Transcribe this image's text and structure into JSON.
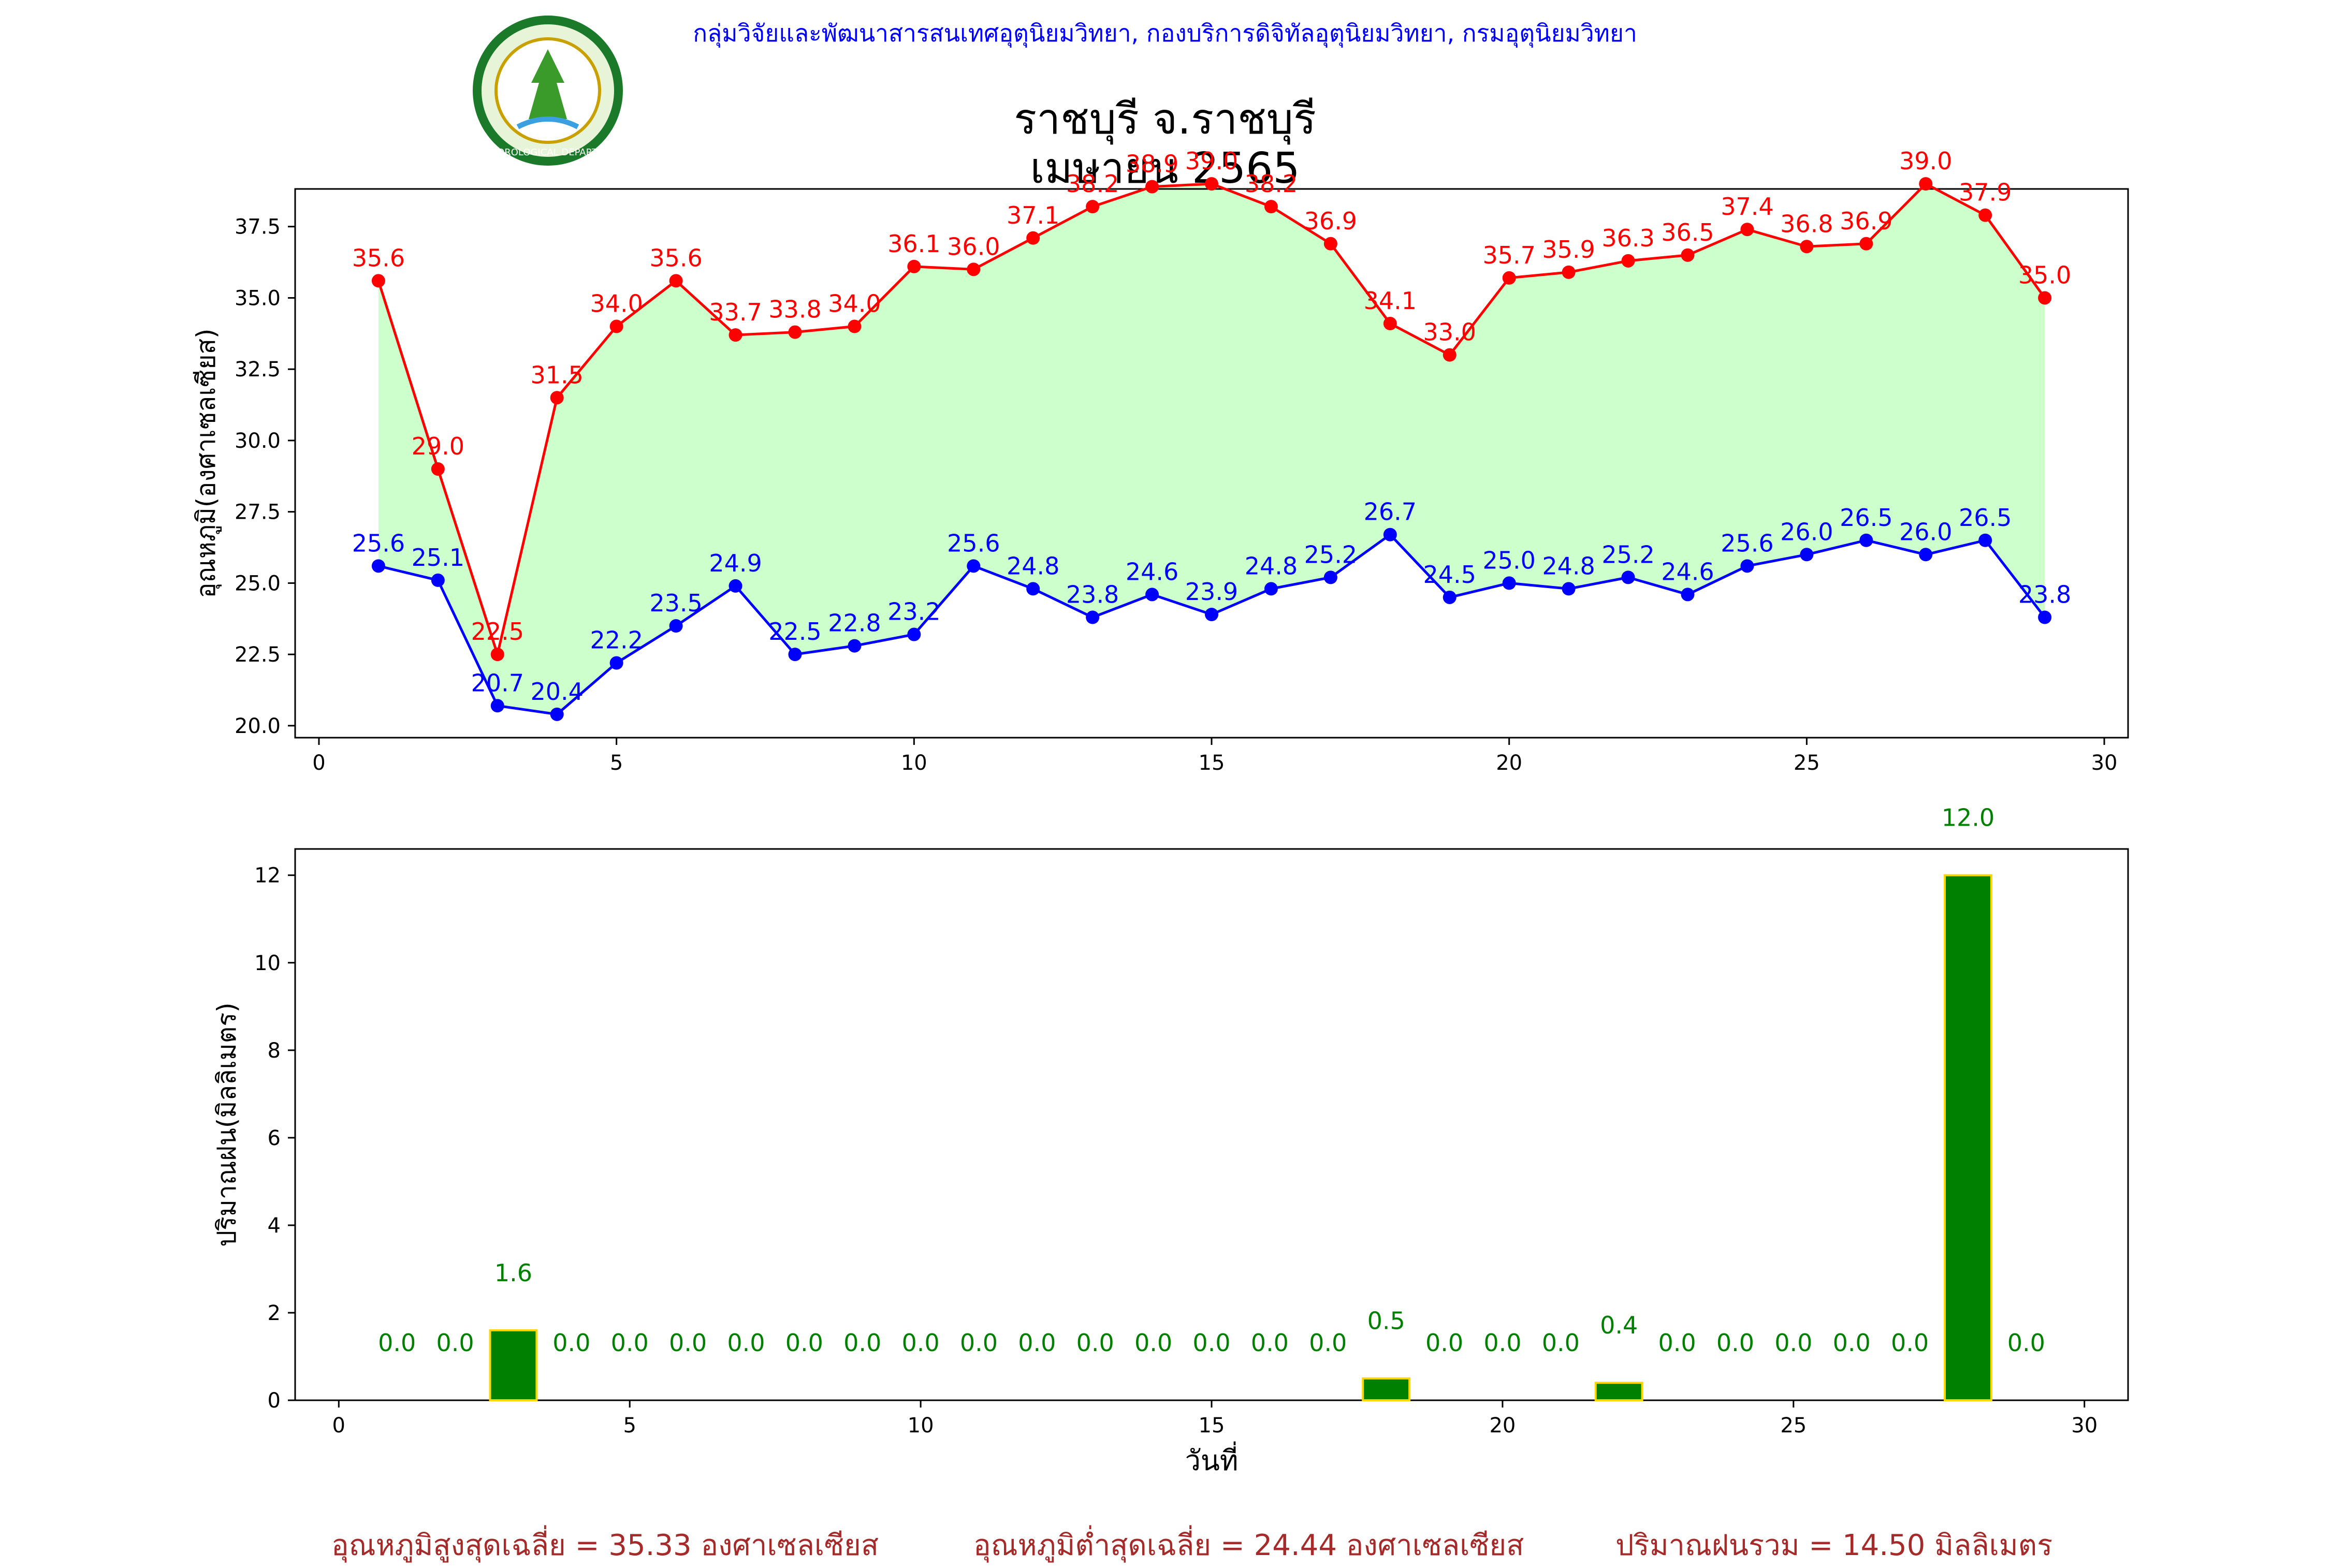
{
  "header": {
    "agency": "กลุ่มวิจัยและพัฒนาสารสนเทศอุตุนิยมวิทยา, กองบริการดิจิทัลอุตุนิยมวิทยา, กรมอุตุนิยมวิทยา",
    "logo_text": "METEOROLOGICAL DEPARTMENT"
  },
  "title": {
    "line1": "ราชบุรี จ.ราชบุรี",
    "line2": "เมษายน 2565"
  },
  "footer": {
    "avg_max": "อุณหภูมิสูงสุดเฉลี่ย = 35.33 องศาเซลเซียส",
    "avg_min": "อุณหภูมิต่ำสุดเฉลี่ย = 24.44 องศาเซลเซียส",
    "total_rain": "ปริมาณฝนรวม = 14.50 มิลลิเมตร"
  },
  "chart_data": [
    {
      "type": "line",
      "ylabel": "อุณหภูมิ(องศาเซลเซียส)",
      "xlabel": "",
      "xlim": [
        -0.4,
        30.4
      ],
      "ylim": [
        19.58,
        38.82
      ],
      "xticks": [
        0,
        5,
        10,
        15,
        20,
        25,
        30
      ],
      "yticks": [
        20.0,
        22.5,
        25.0,
        27.5,
        30.0,
        32.5,
        35.0,
        37.5
      ],
      "x": [
        1,
        2,
        3,
        4,
        5,
        6,
        7,
        8,
        9,
        10,
        11,
        12,
        13,
        14,
        15,
        16,
        17,
        18,
        19,
        20,
        21,
        22,
        23,
        24,
        25,
        26,
        27,
        28,
        29
      ],
      "fill_between": {
        "color": "#ccffcc"
      },
      "series": [
        {
          "color": "#ff0000",
          "values": [
            35.6,
            29.0,
            22.5,
            31.5,
            34.0,
            35.6,
            33.7,
            33.8,
            34.0,
            36.1,
            36.0,
            37.1,
            38.2,
            38.9,
            39.0,
            38.2,
            36.9,
            34.1,
            33.0,
            35.7,
            35.9,
            36.3,
            36.5,
            37.4,
            36.8,
            36.9,
            39.0,
            37.9,
            35.0
          ]
        },
        {
          "color": "#0000ff",
          "values": [
            25.6,
            25.1,
            20.7,
            20.4,
            22.2,
            23.5,
            24.9,
            22.5,
            22.8,
            23.2,
            25.6,
            24.8,
            23.8,
            24.6,
            23.9,
            24.8,
            25.2,
            26.7,
            24.5,
            25.0,
            24.8,
            25.2,
            24.6,
            25.6,
            26.0,
            26.5,
            26.0,
            26.5,
            23.8
          ]
        }
      ]
    },
    {
      "type": "bar",
      "ylabel": "ปริมาณฝน(มิลลิเมตร)",
      "xlabel": "วันที่",
      "xlim": [
        -0.75,
        30.75
      ],
      "ylim": [
        0,
        12.6
      ],
      "xticks": [
        0,
        5,
        10,
        15,
        20,
        25,
        30
      ],
      "yticks": [
        0,
        2,
        4,
        6,
        8,
        10,
        12
      ],
      "bar_color": "#008000",
      "bar_edge": "#ffd700",
      "x": [
        1,
        2,
        3,
        4,
        5,
        6,
        7,
        8,
        9,
        10,
        11,
        12,
        13,
        14,
        15,
        16,
        17,
        18,
        19,
        20,
        21,
        22,
        23,
        24,
        25,
        26,
        27,
        28,
        29
      ],
      "values": [
        0.0,
        0.0,
        1.6,
        0.0,
        0.0,
        0.0,
        0.0,
        0.0,
        0.0,
        0.0,
        0.0,
        0.0,
        0.0,
        0.0,
        0.0,
        0.0,
        0.0,
        0.5,
        0.0,
        0.0,
        0.0,
        0.4,
        0.0,
        0.0,
        0.0,
        0.0,
        0.0,
        12.0,
        0.0
      ]
    }
  ]
}
